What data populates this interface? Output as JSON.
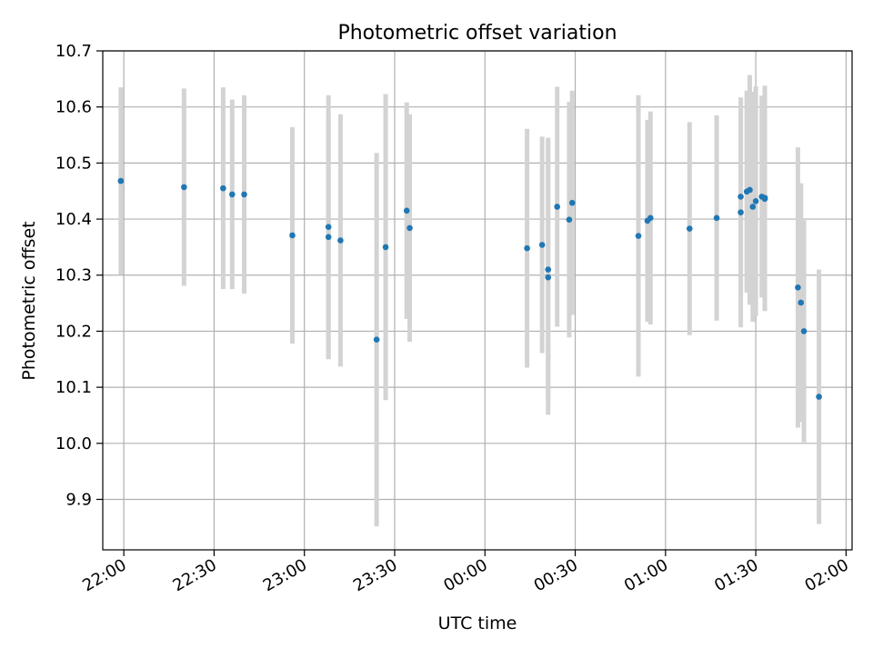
{
  "chart_data": {
    "type": "scatter",
    "title": "Photometric offset variation",
    "xlabel": "UTC time",
    "ylabel": "Photometric offset",
    "x_axis_kind": "time",
    "xlim": [
      "21:53",
      "02:02"
    ],
    "ylim": [
      9.81,
      10.7
    ],
    "x_ticks": [
      "22:00",
      "22:30",
      "23:00",
      "23:30",
      "00:00",
      "00:30",
      "01:00",
      "01:30",
      "02:00"
    ],
    "y_ticks": [
      9.9,
      10.0,
      10.1,
      10.2,
      10.3,
      10.4,
      10.5,
      10.6,
      10.7
    ],
    "grid": true,
    "colors": {
      "point": "#1f77b4",
      "errorbar": "#d3d3d3",
      "grid": "#b0b0b0"
    },
    "series": [
      {
        "points": [
          {
            "x": "21:59",
            "y": 10.468,
            "err": 0.167
          },
          {
            "x": "22:20",
            "y": 10.457,
            "err": 0.176
          },
          {
            "x": "22:33",
            "y": 10.455,
            "err": 0.18
          },
          {
            "x": "22:36",
            "y": 10.444,
            "err": 0.169
          },
          {
            "x": "22:40",
            "y": 10.444,
            "err": 0.177
          },
          {
            "x": "22:56",
            "y": 10.371,
            "err": 0.193
          },
          {
            "x": "23:08",
            "y": 10.386,
            "err": 0.235
          },
          {
            "x": "23:08",
            "y": 10.368,
            "err": 0.218
          },
          {
            "x": "23:12",
            "y": 10.362,
            "err": 0.225
          },
          {
            "x": "23:24",
            "y": 10.185,
            "err": 0.333
          },
          {
            "x": "23:27",
            "y": 10.35,
            "err": 0.273
          },
          {
            "x": "23:34",
            "y": 10.415,
            "err": 0.193
          },
          {
            "x": "23:35",
            "y": 10.384,
            "err": 0.203
          },
          {
            "x": "00:14",
            "y": 10.348,
            "err": 0.213
          },
          {
            "x": "00:19",
            "y": 10.354,
            "err": 0.193
          },
          {
            "x": "00:21",
            "y": 10.31,
            "err": 0.235
          },
          {
            "x": "00:21",
            "y": 10.296,
            "err": 0.245
          },
          {
            "x": "00:24",
            "y": 10.422,
            "err": 0.214
          },
          {
            "x": "00:28",
            "y": 10.399,
            "err": 0.21
          },
          {
            "x": "00:29",
            "y": 10.429,
            "err": 0.2
          },
          {
            "x": "00:51",
            "y": 10.37,
            "err": 0.251
          },
          {
            "x": "00:54",
            "y": 10.397,
            "err": 0.18
          },
          {
            "x": "00:55",
            "y": 10.402,
            "err": 0.19
          },
          {
            "x": "01:08",
            "y": 10.383,
            "err": 0.19
          },
          {
            "x": "01:17",
            "y": 10.402,
            "err": 0.183
          },
          {
            "x": "01:25",
            "y": 10.412,
            "err": 0.205
          },
          {
            "x": "01:25",
            "y": 10.44,
            "err": 0.17
          },
          {
            "x": "01:27",
            "y": 10.449,
            "err": 0.18
          },
          {
            "x": "01:28",
            "y": 10.452,
            "err": 0.205
          },
          {
            "x": "01:29",
            "y": 10.422,
            "err": 0.205
          },
          {
            "x": "01:30",
            "y": 10.432,
            "err": 0.205
          },
          {
            "x": "01:32",
            "y": 10.44,
            "err": 0.18
          },
          {
            "x": "01:33",
            "y": 10.436,
            "err": 0.2
          },
          {
            "x": "01:33",
            "y": 10.438,
            "err": 0.2
          },
          {
            "x": "01:44",
            "y": 10.278,
            "err": 0.25
          },
          {
            "x": "01:45",
            "y": 10.251,
            "err": 0.213
          },
          {
            "x": "01:46",
            "y": 10.2,
            "err": 0.198
          },
          {
            "x": "01:51",
            "y": 10.083,
            "err": 0.227
          }
        ]
      }
    ]
  }
}
